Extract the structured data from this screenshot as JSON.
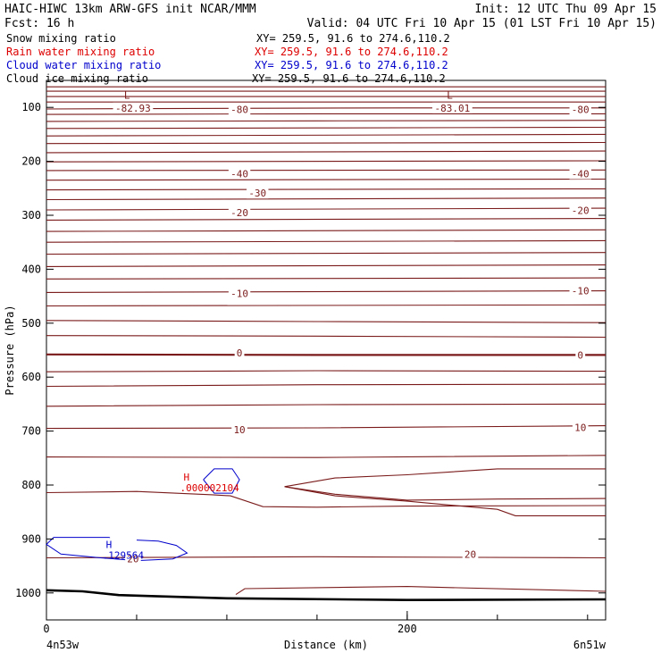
{
  "header": {
    "title": "HAIC-HIWC 13km ARW-GFS init   NCAR/MMM",
    "init": "Init: 12 UTC Thu 09 Apr 15",
    "fcst": "Fcst:   16 h",
    "valid": "Valid: 04 UTC Fri 10 Apr 15 (01 LST Fri 10 Apr 15)"
  },
  "legend": [
    {
      "label": "Snow mixing ratio",
      "xy": "XY= 259.5, 91.6 to 274.6,110.2",
      "color": "#000000"
    },
    {
      "label": "Rain water mixing ratio",
      "xy": "XY= 259.5, 91.6 to 274.6,110.2",
      "color": "#dd0000"
    },
    {
      "label": "Cloud water mixing ratio",
      "xy": "XY= 259.5, 91.6 to 274.6,110.2",
      "color": "#0000cc"
    },
    {
      "label": "Cloud ice mixing ratio",
      "xy": "XY= 259.5, 91.6 to 274.6,110.2",
      "color": "#000000"
    }
  ],
  "chart_data": {
    "type": "line",
    "xlabel": "Distance (km)",
    "ylabel": "Pressure (hPa)",
    "xlim": [
      0,
      310
    ],
    "ylim": [
      1050,
      50
    ],
    "x_ticks": [
      0,
      200
    ],
    "y_ticks": [
      100,
      200,
      300,
      400,
      500,
      600,
      700,
      800,
      900,
      1000
    ],
    "x_start_label": "4n53w",
    "x_end_label": "6n51w",
    "contour_color": "#7a1a1a",
    "terrain_color": "#000000",
    "cloud_color": "#0000cc",
    "isotherms": [
      {
        "points": [
          [
            0,
            62
          ],
          [
            310,
            62
          ]
        ]
      },
      {
        "points": [
          [
            0,
            70
          ],
          [
            310,
            70
          ]
        ]
      },
      {
        "points": [
          [
            0,
            80
          ],
          [
            310,
            80
          ]
        ]
      },
      {
        "points": [
          [
            0,
            90
          ],
          [
            310,
            90
          ]
        ]
      },
      {
        "points": [
          [
            0,
            103
          ],
          [
            80,
            102
          ],
          [
            200,
            101
          ],
          [
            310,
            101
          ]
        ]
      },
      {
        "points": [
          [
            0,
            113
          ],
          [
            150,
            112
          ],
          [
            310,
            112
          ]
        ]
      },
      {
        "points": [
          [
            0,
            126
          ],
          [
            150,
            125
          ],
          [
            310,
            124
          ]
        ]
      },
      {
        "points": [
          [
            0,
            139
          ],
          [
            150,
            138
          ],
          [
            310,
            137
          ]
        ]
      },
      {
        "points": [
          [
            0,
            153
          ],
          [
            310,
            150
          ]
        ]
      },
      {
        "points": [
          [
            0,
            167
          ],
          [
            310,
            165
          ]
        ]
      },
      {
        "points": [
          [
            0,
            184
          ],
          [
            310,
            181
          ]
        ]
      },
      {
        "points": [
          [
            0,
            201
          ],
          [
            310,
            199
          ]
        ]
      },
      {
        "points": [
          [
            0,
            217
          ],
          [
            310,
            216
          ]
        ]
      },
      {
        "points": [
          [
            0,
            235
          ],
          [
            310,
            233
          ]
        ]
      },
      {
        "points": [
          [
            0,
            253
          ],
          [
            310,
            251
          ]
        ]
      },
      {
        "points": [
          [
            0,
            271
          ],
          [
            310,
            268
          ]
        ]
      },
      {
        "points": [
          [
            0,
            290
          ],
          [
            310,
            287
          ]
        ]
      },
      {
        "points": [
          [
            0,
            309
          ],
          [
            310,
            306
          ]
        ]
      },
      {
        "points": [
          [
            0,
            330
          ],
          [
            310,
            327
          ]
        ]
      },
      {
        "points": [
          [
            0,
            350
          ],
          [
            310,
            347
          ]
        ]
      },
      {
        "points": [
          [
            0,
            372
          ],
          [
            310,
            369
          ]
        ]
      },
      {
        "points": [
          [
            0,
            395
          ],
          [
            310,
            392
          ]
        ]
      },
      {
        "points": [
          [
            0,
            418
          ],
          [
            310,
            416
          ]
        ]
      },
      {
        "points": [
          [
            0,
            443
          ],
          [
            310,
            440
          ]
        ]
      },
      {
        "points": [
          [
            0,
            468
          ],
          [
            310,
            466
          ]
        ]
      },
      {
        "points": [
          [
            0,
            495
          ],
          [
            150,
            497
          ],
          [
            310,
            499
          ]
        ]
      },
      {
        "points": [
          [
            0,
            523
          ],
          [
            150,
            524
          ],
          [
            310,
            526
          ]
        ]
      },
      {
        "points": [
          [
            0,
            558
          ],
          [
            150,
            559
          ],
          [
            310,
            559
          ]
        ],
        "bold": true
      },
      {
        "points": [
          [
            0,
            590
          ],
          [
            150,
            588
          ],
          [
            310,
            589
          ]
        ]
      },
      {
        "points": [
          [
            0,
            617
          ],
          [
            150,
            614
          ],
          [
            310,
            613
          ]
        ]
      },
      {
        "points": [
          [
            0,
            654
          ],
          [
            150,
            651
          ],
          [
            310,
            650
          ]
        ]
      },
      {
        "points": [
          [
            0,
            695
          ],
          [
            150,
            694
          ],
          [
            310,
            690
          ]
        ]
      },
      {
        "points": [
          [
            0,
            748
          ],
          [
            150,
            749
          ],
          [
            310,
            745
          ]
        ]
      },
      {
        "points": [
          [
            0,
            814
          ],
          [
            50,
            812
          ],
          [
            92,
            818
          ],
          [
            102,
            820
          ],
          [
            120,
            840
          ],
          [
            150,
            841
          ],
          [
            200,
            839
          ],
          [
            310,
            838
          ]
        ]
      },
      {
        "points": [
          [
            132,
            803
          ],
          [
            160,
            787
          ],
          [
            200,
            781
          ],
          [
            250,
            770
          ],
          [
            310,
            770
          ]
        ]
      },
      {
        "points": [
          [
            132,
            803
          ],
          [
            160,
            817
          ],
          [
            200,
            828
          ],
          [
            250,
            826
          ],
          [
            310,
            825
          ]
        ]
      },
      {
        "points": [
          [
            132,
            803
          ],
          [
            160,
            820
          ],
          [
            200,
            830
          ],
          [
            250,
            845
          ],
          [
            260,
            857
          ],
          [
            310,
            857
          ]
        ]
      },
      {
        "points": [
          [
            0,
            935
          ],
          [
            150,
            933
          ],
          [
            310,
            935
          ]
        ]
      },
      {
        "points": [
          [
            105,
            1003
          ],
          [
            110,
            992
          ],
          [
            200,
            988
          ],
          [
            310,
            997
          ]
        ]
      }
    ],
    "contour_labels": [
      {
        "text": "-82.93",
        "x": 48,
        "y": 101
      },
      {
        "text": "-80",
        "x": 107,
        "y": 104
      },
      {
        "text": "-83.01",
        "x": 225,
        "y": 101
      },
      {
        "text": "-80",
        "x": 296,
        "y": 104
      },
      {
        "text": "-40",
        "x": 107,
        "y": 223
      },
      {
        "text": "-40",
        "x": 296,
        "y": 223
      },
      {
        "text": "-30",
        "x": 117,
        "y": 259
      },
      {
        "text": "-20",
        "x": 107,
        "y": 295
      },
      {
        "text": "-20",
        "x": 296,
        "y": 291
      },
      {
        "text": "-10",
        "x": 107,
        "y": 445
      },
      {
        "text": "-10",
        "x": 296,
        "y": 440
      },
      {
        "text": "0",
        "x": 107,
        "y": 555
      },
      {
        "text": "0",
        "x": 296,
        "y": 559
      },
      {
        "text": "10",
        "x": 107,
        "y": 697
      },
      {
        "text": "10",
        "x": 296,
        "y": 693
      },
      {
        "text": "20",
        "x": 48,
        "y": 937
      },
      {
        "text": "20",
        "x": 235,
        "y": 928
      }
    ],
    "extrema": [
      {
        "mark": "L",
        "value": "",
        "x": 43,
        "y": 84,
        "color": "#7a1a1a"
      },
      {
        "mark": "L",
        "value": "",
        "x": 222,
        "y": 84,
        "color": "#7a1a1a"
      },
      {
        "mark": "H",
        "value": ".000002104",
        "x": 76,
        "y": 792,
        "color": "#dd0000"
      },
      {
        "mark": "H",
        "value": ".129564",
        "x": 33,
        "y": 917,
        "color": "#0000cc"
      }
    ],
    "rain_contour": [
      [
        87,
        790
      ],
      [
        93,
        770
      ],
      [
        103,
        770
      ],
      [
        107,
        790
      ],
      [
        103,
        815
      ],
      [
        93,
        815
      ],
      [
        87,
        790
      ]
    ],
    "cloud_contours": [
      [
        [
          35,
          897
        ],
        [
          4,
          897
        ],
        [
          0,
          910
        ],
        [
          8,
          928
        ],
        [
          30,
          935
        ],
        [
          50,
          940
        ],
        [
          70,
          937
        ],
        [
          78,
          926
        ],
        [
          72,
          912
        ],
        [
          62,
          904
        ],
        [
          50,
          902
        ]
      ],
      [
        [
          35,
          897
        ],
        [
          35,
          898
        ]
      ]
    ],
    "terrain": [
      [
        0,
        995
      ],
      [
        20,
        997
      ],
      [
        40,
        1004
      ],
      [
        60,
        1006
      ],
      [
        100,
        1010
      ],
      [
        200,
        1013
      ],
      [
        310,
        1012
      ]
    ]
  }
}
